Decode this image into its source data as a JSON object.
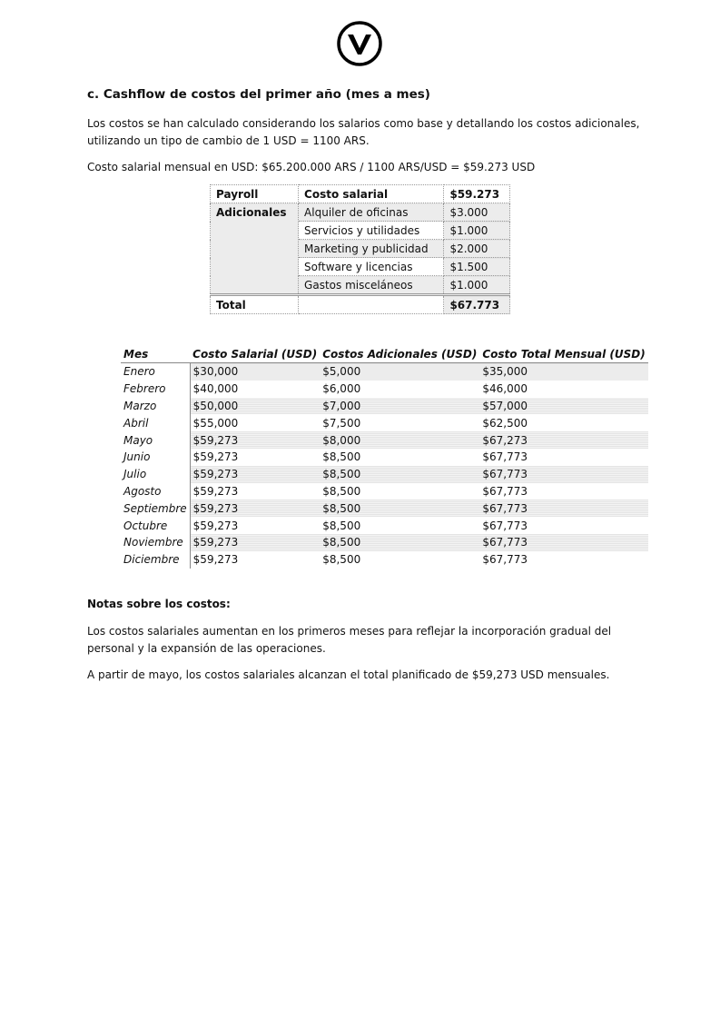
{
  "logo": {
    "icon": "circle-v-logo"
  },
  "heading": "c. Cashflow de costos del primer año (mes a mes)",
  "intro": "Los costos se han calculado considerando los salarios como base y detallando los costos adicionales, utilizando un tipo de cambio de 1 USD = 1100 ARS.",
  "salary_line": "Costo salarial mensual en USD: $65.200.000 ARS / 1100 ARS/USD = $59.273 USD",
  "summary": {
    "payroll": {
      "group": "Payroll",
      "item": "Costo salarial",
      "value": "$59.273"
    },
    "additional_group": "Adicionales",
    "additional": [
      {
        "item": "Alquiler de oficinas",
        "value": "$3.000"
      },
      {
        "item": "Servicios y utilidades",
        "value": "$1.000"
      },
      {
        "item": "Marketing y publicidad",
        "value": "$2.000"
      },
      {
        "item": "Software y licencias",
        "value": "$1.500"
      },
      {
        "item": "Gastos misceláneos",
        "value": "$1.000"
      }
    ],
    "total": {
      "label": "Total",
      "value": "$67.773"
    }
  },
  "monthly": {
    "headers": [
      "Mes",
      "Costo Salarial (USD)",
      "Costos Adicionales (USD)",
      "Costo Total Mensual (USD)"
    ],
    "rows": [
      [
        "Enero",
        "$30,000",
        "$5,000",
        "$35,000"
      ],
      [
        "Febrero",
        "$40,000",
        "$6,000",
        "$46,000"
      ],
      [
        "Marzo",
        "$50,000",
        "$7,000",
        "$57,000"
      ],
      [
        "Abril",
        "$55,000",
        "$7,500",
        "$62,500"
      ],
      [
        "Mayo",
        "$59,273",
        "$8,000",
        "$67,273"
      ],
      [
        "Junio",
        "$59,273",
        "$8,500",
        "$67,773"
      ],
      [
        "Julio",
        "$59,273",
        "$8,500",
        "$67,773"
      ],
      [
        "Agosto",
        "$59,273",
        "$8,500",
        "$67,773"
      ],
      [
        "Septiembre",
        "$59,273",
        "$8,500",
        "$67,773"
      ],
      [
        "Octubre",
        "$59,273",
        "$8,500",
        "$67,773"
      ],
      [
        "Noviembre",
        "$59,273",
        "$8,500",
        "$67,773"
      ],
      [
        "Diciembre",
        "$59,273",
        "$8,500",
        "$67,773"
      ]
    ]
  },
  "notes": {
    "title": "Notas sobre los costos:",
    "paragraphs": [
      "Los costos salariales aumentan en los primeros meses para reflejar la incorporación gradual del personal y la expansión de las operaciones.",
      "A partir de mayo, los costos salariales alcanzan el total planificado de $59,273 USD mensuales."
    ]
  }
}
